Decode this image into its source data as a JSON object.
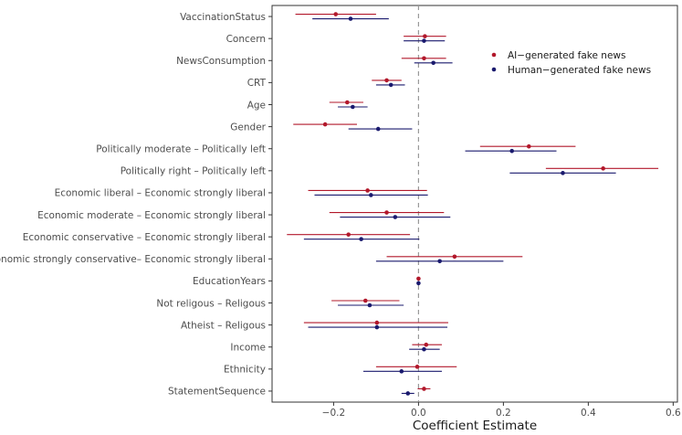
{
  "chart_data": {
    "type": "forest",
    "title": "",
    "xlabel": "Coefficient Estimate",
    "ylabel": "",
    "xlim": [
      -0.345,
      0.61
    ],
    "xticks": [
      -0.2,
      0.0,
      0.2,
      0.4,
      0.6
    ],
    "xtick_labels": [
      "−0.2",
      "0.0",
      "0.2",
      "0.4",
      "0.6"
    ],
    "reference_line": 0,
    "grid": false,
    "legend_position": "top-right",
    "categories": [
      "VaccinationStatus",
      "Concern",
      "NewsConsumption",
      "CRT",
      "Age",
      "Gender",
      "Politically moderate – Politically left",
      "Politically right – Politically left",
      "Economic liberal – Economic strongly liberal",
      "Economic moderate – Economic strongly liberal",
      "Economic conservative – Economic strongly liberal",
      "Economic strongly conservative– Economic strongly liberal",
      "EducationYears",
      "Not religous – Religous",
      "Atheist – Religous",
      "Income",
      "Ethnicity",
      "StatementSequence"
    ],
    "series": [
      {
        "name": "AI−generated fake news",
        "color": "#b2182b",
        "estimates": [
          -0.195,
          0.015,
          0.013,
          -0.075,
          -0.168,
          -0.22,
          0.26,
          0.435,
          -0.12,
          -0.075,
          -0.165,
          0.085,
          0.0,
          -0.125,
          -0.098,
          0.018,
          -0.003,
          0.013
        ],
        "ci_low": [
          -0.29,
          -0.035,
          -0.04,
          -0.11,
          -0.21,
          -0.295,
          0.145,
          0.3,
          -0.26,
          -0.21,
          -0.31,
          -0.075,
          -0.002,
          -0.205,
          -0.27,
          -0.015,
          -0.1,
          -0.002
        ],
        "ci_high": [
          -0.1,
          0.065,
          0.065,
          -0.04,
          -0.13,
          -0.145,
          0.37,
          0.565,
          0.02,
          0.06,
          -0.02,
          0.245,
          0.002,
          -0.045,
          0.07,
          0.055,
          0.09,
          0.028
        ]
      },
      {
        "name": "Human−generated fake news",
        "color": "#1a1a6e",
        "estimates": [
          -0.16,
          0.013,
          0.035,
          -0.065,
          -0.155,
          -0.095,
          0.22,
          0.34,
          -0.112,
          -0.055,
          -0.135,
          0.05,
          0.0,
          -0.115,
          -0.098,
          0.013,
          -0.04,
          -0.025
        ],
        "ci_low": [
          -0.25,
          -0.035,
          -0.01,
          -0.1,
          -0.19,
          -0.165,
          0.11,
          0.215,
          -0.245,
          -0.185,
          -0.27,
          -0.1,
          -0.002,
          -0.19,
          -0.26,
          -0.022,
          -0.13,
          -0.04
        ],
        "ci_high": [
          -0.07,
          0.062,
          0.08,
          -0.032,
          -0.12,
          -0.015,
          0.325,
          0.465,
          0.022,
          0.075,
          0.002,
          0.2,
          0.002,
          -0.035,
          0.068,
          0.05,
          0.055,
          -0.01
        ]
      }
    ]
  }
}
